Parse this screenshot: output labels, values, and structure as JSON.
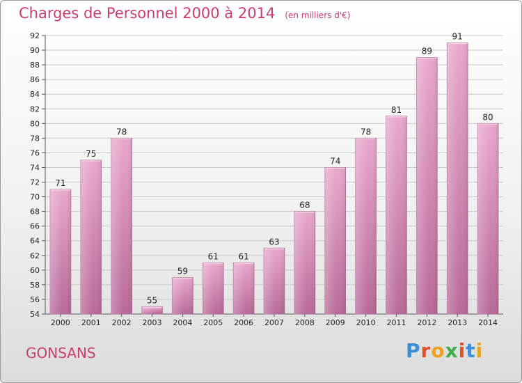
{
  "chart_data": {
    "type": "bar",
    "title": "Charges de Personnel 2000 à 2014",
    "subtitle": "(en milliers d'€)",
    "categories": [
      "2000",
      "2001",
      "2002",
      "2003",
      "2004",
      "2005",
      "2006",
      "2007",
      "2008",
      "2009",
      "2010",
      "2011",
      "2012",
      "2013",
      "2014"
    ],
    "values": [
      71,
      75,
      78,
      55,
      59,
      61,
      61,
      63,
      68,
      74,
      78,
      81,
      89,
      91,
      80
    ],
    "ylim": [
      54,
      92
    ],
    "yticks": [
      54,
      56,
      58,
      60,
      62,
      64,
      66,
      68,
      70,
      72,
      74,
      76,
      78,
      80,
      82,
      84,
      86,
      88,
      90,
      92
    ],
    "grid": true,
    "bar_color": "#d98fb8",
    "xlabel": "",
    "ylabel": ""
  },
  "footer": {
    "town": "GONSANS",
    "logo_letters": [
      "P",
      "r",
      "o",
      "x",
      "i",
      "t",
      "i"
    ],
    "logo_colors": [
      "#3a8fd8",
      "#e0502d",
      "#f0a020",
      "#3fae49",
      "#e0502d",
      "#3a8fd8",
      "#f0a020"
    ]
  },
  "colors": {
    "accent": "#c8406b"
  }
}
